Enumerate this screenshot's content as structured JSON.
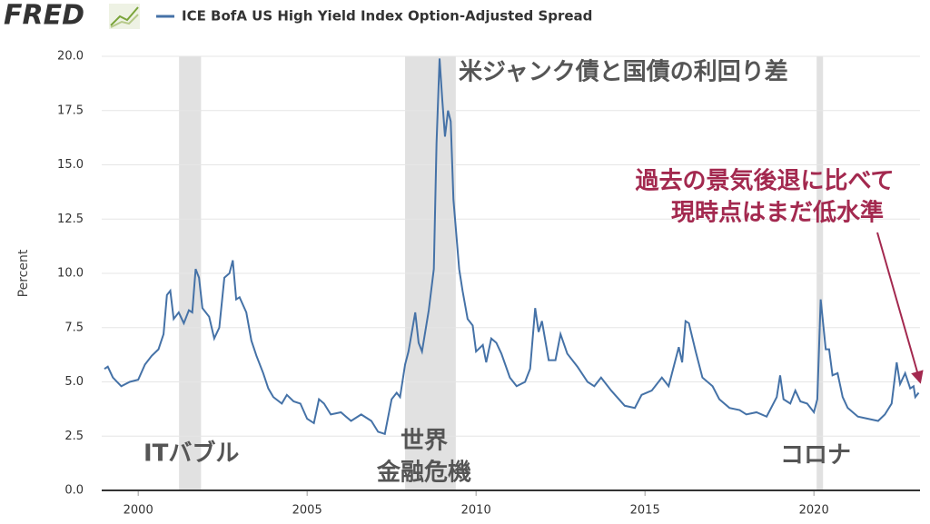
{
  "chart_data": {
    "type": "line",
    "logo": "FRED",
    "ylabel": "Percent",
    "annotations": [
      "米ジャンク債と国債の利回り差",
      "ITバブル",
      [
        "世界",
        "金融危機"
      ],
      "コロナ",
      [
        "過去の景気後退に比べて",
        "現時点はまだ低水準"
      ]
    ],
    "recessions": [
      [
        2001.21,
        2001.86
      ],
      [
        2007.9,
        2009.4
      ],
      [
        2020.08,
        2020.27
      ]
    ],
    "x": [
      1999.0,
      1999.1,
      1999.25,
      1999.5,
      1999.75,
      2000.0,
      2000.2,
      2000.4,
      2000.6,
      2000.75,
      2000.85,
      2000.95,
      2001.05,
      2001.2,
      2001.35,
      2001.5,
      2001.6,
      2001.7,
      2001.8,
      2001.9,
      2002.1,
      2002.25,
      2002.4,
      2002.55,
      2002.7,
      2002.8,
      2002.9,
      2003.0,
      2003.2,
      2003.35,
      2003.5,
      2003.7,
      2003.85,
      2004.0,
      2004.25,
      2004.4,
      2004.6,
      2004.8,
      2005.0,
      2005.2,
      2005.35,
      2005.5,
      2005.7,
      2006.0,
      2006.3,
      2006.6,
      2006.9,
      2007.1,
      2007.3,
      2007.5,
      2007.65,
      2007.75,
      2007.9,
      2008.0,
      2008.2,
      2008.3,
      2008.4,
      2008.6,
      2008.75,
      2008.83,
      2008.92,
      2009.0,
      2009.08,
      2009.17,
      2009.25,
      2009.33,
      2009.5,
      2009.6,
      2009.75,
      2009.9,
      2010.0,
      2010.2,
      2010.3,
      2010.45,
      2010.6,
      2010.75,
      2011.0,
      2011.2,
      2011.45,
      2011.6,
      2011.75,
      2011.85,
      2011.95,
      2012.15,
      2012.35,
      2012.5,
      2012.7,
      2013.0,
      2013.3,
      2013.5,
      2013.7,
      2014.0,
      2014.4,
      2014.7,
      2014.9,
      2015.2,
      2015.5,
      2015.7,
      2016.0,
      2016.1,
      2016.2,
      2016.3,
      2016.5,
      2016.7,
      2017.0,
      2017.2,
      2017.5,
      2017.8,
      2018.0,
      2018.3,
      2018.6,
      2018.9,
      2019.0,
      2019.1,
      2019.3,
      2019.45,
      2019.6,
      2019.8,
      2020.0,
      2020.1,
      2020.2,
      2020.35,
      2020.45,
      2020.55,
      2020.7,
      2020.85,
      2021.0,
      2021.3,
      2021.6,
      2021.9,
      2022.1,
      2022.3,
      2022.45,
      2022.55,
      2022.7,
      2022.85,
      2022.95,
      2023.0,
      2023.1
    ],
    "series": [
      {
        "name": "ICE BofA US High Yield Index Option-Adjusted Spread",
        "color": "#4572a7",
        "values": [
          5.6,
          5.7,
          5.2,
          4.8,
          5.0,
          5.1,
          5.8,
          6.2,
          6.5,
          7.2,
          9.0,
          9.2,
          7.9,
          8.2,
          7.7,
          8.3,
          8.2,
          10.2,
          9.8,
          8.4,
          8.0,
          7.0,
          7.5,
          9.8,
          10.0,
          10.6,
          8.8,
          8.9,
          8.2,
          6.9,
          6.2,
          5.4,
          4.7,
          4.3,
          4.0,
          4.4,
          4.1,
          4.0,
          3.3,
          3.1,
          4.2,
          4.0,
          3.5,
          3.6,
          3.2,
          3.5,
          3.2,
          2.7,
          2.6,
          4.2,
          4.5,
          4.3,
          5.8,
          6.4,
          8.2,
          6.8,
          6.4,
          8.3,
          10.2,
          16.0,
          19.9,
          18.0,
          16.3,
          17.5,
          17.0,
          13.4,
          10.2,
          9.2,
          7.9,
          7.6,
          6.4,
          6.7,
          5.9,
          7.0,
          6.8,
          6.3,
          5.2,
          4.8,
          5.0,
          5.6,
          8.4,
          7.3,
          7.8,
          6.0,
          6.0,
          7.2,
          6.3,
          5.7,
          5.0,
          4.8,
          5.2,
          4.6,
          3.9,
          3.8,
          4.4,
          4.6,
          5.2,
          4.8,
          6.6,
          5.9,
          7.8,
          7.7,
          6.4,
          5.2,
          4.8,
          4.2,
          3.8,
          3.7,
          3.5,
          3.6,
          3.4,
          4.3,
          5.3,
          4.2,
          4.0,
          4.6,
          4.1,
          4.0,
          3.6,
          4.2,
          8.8,
          6.5,
          6.5,
          5.3,
          5.4,
          4.3,
          3.8,
          3.4,
          3.3,
          3.2,
          3.5,
          4.0,
          5.9,
          4.9,
          5.4,
          4.7,
          4.8,
          4.3,
          4.5
        ]
      }
    ],
    "xlim": [
      1998.92,
      2023.14
    ],
    "xticks": [
      2000,
      2005,
      2010,
      2015,
      2020
    ],
    "ylim": [
      0,
      20
    ],
    "yticks": [
      {
        "value": 0,
        "label": "0.0"
      },
      {
        "value": 2.5,
        "label": "2.5"
      },
      {
        "value": 5,
        "label": "5.0"
      },
      {
        "value": 7.5,
        "label": "7.5"
      },
      {
        "value": 10,
        "label": "10.0"
      },
      {
        "value": 12.5,
        "label": "12.5"
      },
      {
        "value": 15,
        "label": "15.0"
      },
      {
        "value": 17.5,
        "label": "17.5"
      },
      {
        "value": 20,
        "label": "20.0"
      }
    ],
    "grid": true
  }
}
